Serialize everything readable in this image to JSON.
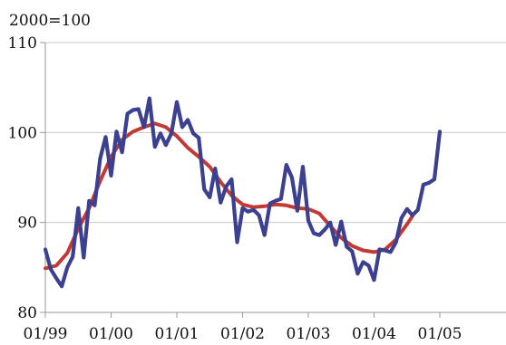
{
  "chart_data": {
    "type": "line",
    "title": "",
    "unit_label": "2000=100",
    "xlabel": "",
    "ylabel": "",
    "ylim": [
      80,
      110
    ],
    "y_ticks": [
      "80",
      "90",
      "100",
      "110"
    ],
    "y_tick_values": [
      80,
      90,
      100,
      110
    ],
    "xlim": [
      "1999-01",
      "2005-12"
    ],
    "x_ticks": [
      "01/99",
      "01/00",
      "01/01",
      "01/02",
      "01/03",
      "01/04",
      "01/05"
    ],
    "x_tick_dates": [
      "1999-01",
      "2000-01",
      "2001-01",
      "2002-01",
      "2003-01",
      "2004-01",
      "2005-01"
    ],
    "grid": true,
    "legend": "none",
    "series": [
      {
        "color": "#3b4190",
        "points": [
          [
            "1999-01",
            87.0
          ],
          [
            "1999-02",
            84.8
          ],
          [
            "1999-03",
            83.8
          ],
          [
            "1999-04",
            82.9
          ],
          [
            "1999-05",
            85.0
          ],
          [
            "1999-06",
            86.2
          ],
          [
            "1999-07",
            91.6
          ],
          [
            "1999-08",
            86.1
          ],
          [
            "1999-09",
            92.4
          ],
          [
            "1999-10",
            91.9
          ],
          [
            "1999-11",
            97.1
          ],
          [
            "1999-12",
            99.5
          ],
          [
            "2000-01",
            95.2
          ],
          [
            "2000-02",
            100.1
          ],
          [
            "2000-03",
            97.8
          ],
          [
            "2000-04",
            102.1
          ],
          [
            "2000-05",
            102.5
          ],
          [
            "2000-06",
            102.6
          ],
          [
            "2000-07",
            100.6
          ],
          [
            "2000-08",
            103.8
          ],
          [
            "2000-09",
            98.4
          ],
          [
            "2000-10",
            99.9
          ],
          [
            "2000-11",
            98.6
          ],
          [
            "2000-12",
            99.9
          ],
          [
            "2001-01",
            103.4
          ],
          [
            "2001-02",
            100.6
          ],
          [
            "2001-03",
            101.4
          ],
          [
            "2001-04",
            99.9
          ],
          [
            "2001-05",
            99.4
          ],
          [
            "2001-06",
            93.7
          ],
          [
            "2001-07",
            92.8
          ],
          [
            "2001-08",
            96.0
          ],
          [
            "2001-09",
            92.2
          ],
          [
            "2001-10",
            94.0
          ],
          [
            "2001-11",
            94.8
          ],
          [
            "2001-12",
            87.8
          ],
          [
            "2002-01",
            91.6
          ],
          [
            "2002-02",
            91.2
          ],
          [
            "2002-03",
            91.4
          ],
          [
            "2002-04",
            90.8
          ],
          [
            "2002-05",
            88.6
          ],
          [
            "2002-06",
            92.1
          ],
          [
            "2002-07",
            92.4
          ],
          [
            "2002-08",
            92.6
          ],
          [
            "2002-09",
            96.4
          ],
          [
            "2002-10",
            95.0
          ],
          [
            "2002-11",
            91.3
          ],
          [
            "2002-12",
            96.2
          ],
          [
            "2003-01",
            90.2
          ],
          [
            "2003-02",
            88.8
          ],
          [
            "2003-03",
            88.6
          ],
          [
            "2003-04",
            89.2
          ],
          [
            "2003-05",
            90.0
          ],
          [
            "2003-06",
            87.5
          ],
          [
            "2003-07",
            90.1
          ],
          [
            "2003-08",
            87.3
          ],
          [
            "2003-09",
            86.8
          ],
          [
            "2003-10",
            84.3
          ],
          [
            "2003-11",
            85.6
          ],
          [
            "2003-12",
            85.2
          ],
          [
            "2004-01",
            83.6
          ],
          [
            "2004-02",
            87.0
          ],
          [
            "2004-03",
            86.9
          ],
          [
            "2004-04",
            86.7
          ],
          [
            "2004-05",
            87.8
          ],
          [
            "2004-06",
            90.5
          ],
          [
            "2004-07",
            91.5
          ],
          [
            "2004-08",
            90.8
          ],
          [
            "2004-09",
            91.4
          ],
          [
            "2004-10",
            94.2
          ],
          [
            "2004-11",
            94.4
          ],
          [
            "2004-12",
            94.8
          ],
          [
            "2005-01",
            100.1
          ]
        ]
      },
      {
        "color": "#c33a35",
        "points": [
          [
            "1999-01",
            84.9
          ],
          [
            "1999-03",
            85.2
          ],
          [
            "1999-05",
            86.6
          ],
          [
            "1999-07",
            89.3
          ],
          [
            "1999-09",
            91.6
          ],
          [
            "1999-11",
            94.6
          ],
          [
            "2000-01",
            97.3
          ],
          [
            "2000-03",
            99.2
          ],
          [
            "2000-05",
            100.1
          ],
          [
            "2000-07",
            100.6
          ],
          [
            "2000-09",
            101.0
          ],
          [
            "2000-11",
            100.6
          ],
          [
            "2001-01",
            99.6
          ],
          [
            "2001-03",
            98.3
          ],
          [
            "2001-05",
            97.3
          ],
          [
            "2001-07",
            96.2
          ],
          [
            "2001-09",
            94.5
          ],
          [
            "2001-11",
            93.0
          ],
          [
            "2002-01",
            92.0
          ],
          [
            "2002-03",
            91.7
          ],
          [
            "2002-05",
            91.8
          ],
          [
            "2002-07",
            92.0
          ],
          [
            "2002-09",
            91.9
          ],
          [
            "2002-11",
            91.6
          ],
          [
            "2003-01",
            91.5
          ],
          [
            "2003-03",
            91.0
          ],
          [
            "2003-05",
            89.6
          ],
          [
            "2003-07",
            88.3
          ],
          [
            "2003-09",
            87.4
          ],
          [
            "2003-11",
            86.9
          ],
          [
            "2004-01",
            86.7
          ],
          [
            "2004-03",
            87.0
          ],
          [
            "2004-05",
            88.1
          ],
          [
            "2004-07",
            89.8
          ],
          [
            "2004-08",
            90.7
          ]
        ]
      }
    ]
  }
}
